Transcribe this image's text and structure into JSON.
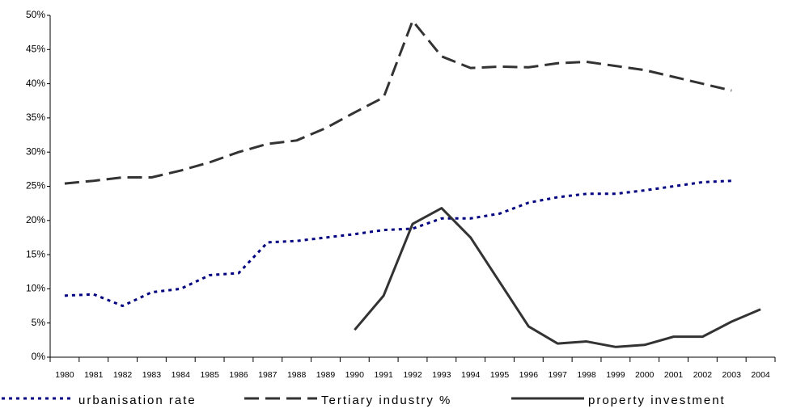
{
  "chart_data": {
    "type": "line",
    "categories": [
      "1980",
      "1981",
      "1982",
      "1983",
      "1984",
      "1985",
      "1986",
      "1987",
      "1988",
      "1989",
      "1990",
      "1991",
      "1992",
      "1993",
      "1994",
      "1995",
      "1996",
      "1997",
      "1998",
      "1999",
      "2000",
      "2001",
      "2002",
      "2003",
      "2004"
    ],
    "series": [
      {
        "name": "urbanisation rate",
        "color": "#000080",
        "dash": "dotted",
        "values": [
          9.0,
          9.2,
          7.5,
          9.5,
          10.0,
          12.0,
          12.3,
          16.8,
          17.0,
          17.5,
          18.0,
          18.6,
          18.8,
          20.3,
          20.3,
          21.0,
          22.6,
          23.4,
          23.9,
          23.9,
          24.4,
          25.0,
          25.6,
          25.8,
          null
        ]
      },
      {
        "name": "Tertiary industry %",
        "color": "#333333",
        "dash": "dashed",
        "values": [
          25.4,
          25.8,
          26.3,
          26.3,
          27.3,
          28.5,
          30.0,
          31.2,
          31.7,
          33.5,
          35.8,
          38.0,
          49.2,
          44.0,
          42.3,
          42.5,
          42.4,
          43.0,
          43.2,
          42.6,
          42.0,
          41.0,
          40.0,
          39.0,
          null
        ]
      },
      {
        "name": "property investment",
        "color": "#333333",
        "dash": "solid",
        "values": [
          null,
          null,
          null,
          null,
          null,
          null,
          null,
          null,
          null,
          null,
          4.0,
          9.0,
          19.5,
          21.8,
          17.5,
          11.0,
          4.5,
          2.0,
          2.3,
          1.5,
          1.8,
          3.0,
          3.0,
          5.2,
          7.0
        ]
      }
    ],
    "ylim": [
      0,
      50
    ],
    "yticks": [
      {
        "value": 0,
        "label": "0%"
      },
      {
        "value": 5,
        "label": "5%"
      },
      {
        "value": 10,
        "label": "10%"
      },
      {
        "value": 15,
        "label": "15%"
      },
      {
        "value": 20,
        "label": "20%"
      },
      {
        "value": 25,
        "label": "25%"
      },
      {
        "value": 30,
        "label": "30%"
      },
      {
        "value": 35,
        "label": "35%"
      },
      {
        "value": 40,
        "label": "40%"
      },
      {
        "value": 45,
        "label": "45%"
      },
      {
        "value": 50,
        "label": "50%"
      }
    ],
    "grid": false,
    "legend": "bottom"
  }
}
